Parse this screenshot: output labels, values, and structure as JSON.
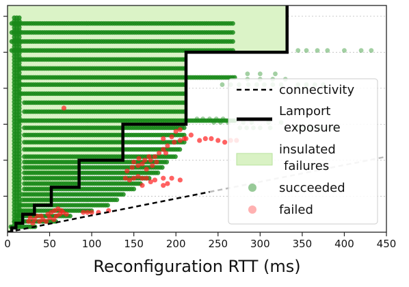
{
  "chart_data": {
    "type": "scatter",
    "xlabel": "Reconfiguration RTT (ms)",
    "ylabel": "",
    "title": "",
    "xlim": [
      0,
      450
    ],
    "ylim": [
      0,
      6.3
    ],
    "x_ticks": [
      "0",
      "50",
      "100",
      "150",
      "200",
      "250",
      "300",
      "350",
      "400",
      "450"
    ],
    "grid": "horizontal dashed",
    "legend_position": "right",
    "legend": {
      "connectivity": "connectivity",
      "lamport_line1": "Lamport",
      "lamport_line2": "exposure",
      "insulated_line1": "insulated",
      "insulated_line2": "failures",
      "succeeded": "succeeded",
      "failed": "failed"
    },
    "colors": {
      "succeeded": "#1a8a1a",
      "failed": "#ff2020",
      "insulated_fill": "#d9f2c4",
      "lamport_line": "#000000",
      "connectivity_line": "#000000",
      "connectivity_extension": "#bbbbbb"
    },
    "connectivity": [
      [
        0,
        0
      ],
      [
        450,
        2.1
      ]
    ],
    "lamport_exposure": [
      [
        0,
        0
      ],
      [
        5,
        0
      ],
      [
        5,
        0.12
      ],
      [
        10,
        0.12
      ],
      [
        10,
        0.25
      ],
      [
        18,
        0.25
      ],
      [
        18,
        0.5
      ],
      [
        32,
        0.5
      ],
      [
        32,
        0.75
      ],
      [
        52,
        0.75
      ],
      [
        52,
        1.25
      ],
      [
        85,
        1.25
      ],
      [
        85,
        2.0
      ],
      [
        137,
        2.0
      ],
      [
        137,
        3.0
      ],
      [
        212,
        3.0
      ],
      [
        212,
        5.0
      ],
      [
        332,
        5.0
      ],
      [
        332,
        6.3
      ]
    ],
    "insulated_failures": [
      [
        0,
        0
      ],
      [
        5,
        0
      ],
      [
        5,
        0.12
      ],
      [
        10,
        0.12
      ],
      [
        10,
        0.25
      ],
      [
        18,
        0.25
      ],
      [
        18,
        0.5
      ],
      [
        32,
        0.5
      ],
      [
        32,
        0.75
      ],
      [
        52,
        0.75
      ],
      [
        52,
        1.25
      ],
      [
        85,
        1.25
      ],
      [
        85,
        2.0
      ],
      [
        137,
        2.0
      ],
      [
        137,
        3.0
      ],
      [
        212,
        3.0
      ],
      [
        212,
        5.0
      ],
      [
        332,
        5.0
      ],
      [
        332,
        6.3
      ],
      [
        0,
        6.3
      ]
    ],
    "succeeded_bands": [
      {
        "y": 0.15,
        "x": [
          4,
          35
        ]
      },
      {
        "y": 0.3,
        "x": [
          8,
          60
        ]
      },
      {
        "y": 0.45,
        "x": [
          12,
          75
        ]
      },
      {
        "y": 0.6,
        "x": [
          14,
          100
        ]
      },
      {
        "y": 0.75,
        "x": [
          15,
          120
        ]
      },
      {
        "y": 0.9,
        "x": [
          18,
          130
        ]
      },
      {
        "y": 1.05,
        "x": [
          18,
          140
        ]
      },
      {
        "y": 1.2,
        "x": [
          20,
          150
        ]
      },
      {
        "y": 1.35,
        "x": [
          20,
          160
        ]
      },
      {
        "y": 1.5,
        "x": [
          20,
          170
        ]
      },
      {
        "y": 1.65,
        "x": [
          20,
          180
        ]
      },
      {
        "y": 1.8,
        "x": [
          20,
          185
        ]
      },
      {
        "y": 1.95,
        "x": [
          20,
          190
        ]
      },
      {
        "y": 2.1,
        "x": [
          20,
          200
        ]
      },
      {
        "y": 2.3,
        "x": [
          20,
          205
        ]
      },
      {
        "y": 2.5,
        "x": [
          20,
          210
        ]
      },
      {
        "y": 2.7,
        "x": [
          20,
          210
        ]
      },
      {
        "y": 2.9,
        "x": [
          20,
          210
        ]
      },
      {
        "y": 3.1,
        "x": [
          15,
          270
        ]
      },
      {
        "y": 3.35,
        "x": [
          20,
          210
        ]
      },
      {
        "y": 3.6,
        "x": [
          20,
          210
        ]
      },
      {
        "y": 3.85,
        "x": [
          15,
          210
        ]
      },
      {
        "y": 4.1,
        "x": [
          15,
          210
        ]
      },
      {
        "y": 4.3,
        "x": [
          15,
          270
        ]
      },
      {
        "y": 4.55,
        "x": [
          15,
          210
        ]
      },
      {
        "y": 4.8,
        "x": [
          15,
          210
        ]
      },
      {
        "y": 5.05,
        "x": [
          5,
          270
        ]
      },
      {
        "y": 5.3,
        "x": [
          5,
          270
        ]
      },
      {
        "y": 5.55,
        "x": [
          5,
          270
        ]
      },
      {
        "y": 5.8,
        "x": [
          5,
          270
        ]
      }
    ],
    "succeeded_sparse": [
      [
        225,
        3.15
      ],
      [
        232,
        3.15
      ],
      [
        240,
        3.15
      ],
      [
        248,
        3.15
      ],
      [
        256,
        3.15
      ],
      [
        245,
        3.05
      ],
      [
        253,
        3.05
      ],
      [
        262,
        3.05
      ],
      [
        276,
        2.9
      ],
      [
        284,
        2.9
      ],
      [
        292,
        2.9
      ],
      [
        300,
        2.9
      ],
      [
        312,
        2.9
      ],
      [
        330,
        2.9
      ],
      [
        345,
        2.9
      ],
      [
        352,
        2.9
      ],
      [
        360,
        2.9
      ],
      [
        370,
        2.9
      ],
      [
        380,
        2.9
      ],
      [
        390,
        2.9
      ],
      [
        280,
        3.05
      ],
      [
        290,
        3.05
      ],
      [
        310,
        3.05
      ],
      [
        325,
        3.05
      ],
      [
        255,
        4.1
      ],
      [
        265,
        4.1
      ],
      [
        275,
        4.1
      ],
      [
        286,
        4.1
      ],
      [
        296,
        4.1
      ],
      [
        305,
        4.1
      ],
      [
        315,
        4.1
      ],
      [
        325,
        4.1
      ],
      [
        345,
        4.1
      ],
      [
        355,
        4.1
      ],
      [
        365,
        4.1
      ],
      [
        375,
        4.1
      ],
      [
        285,
        4.25
      ],
      [
        300,
        4.25
      ],
      [
        315,
        4.25
      ],
      [
        330,
        4.25
      ],
      [
        285,
        4.4
      ],
      [
        300,
        4.4
      ],
      [
        318,
        4.4
      ],
      [
        345,
        5.05
      ],
      [
        355,
        5.05
      ],
      [
        368,
        5.05
      ],
      [
        380,
        5.05
      ],
      [
        400,
        5.05
      ],
      [
        420,
        5.05
      ],
      [
        432,
        5.05
      ]
    ],
    "failed_points": [
      [
        25,
        0.3
      ],
      [
        32,
        0.35
      ],
      [
        38,
        0.3
      ],
      [
        42,
        0.35
      ],
      [
        46,
        0.3
      ],
      [
        50,
        0.4
      ],
      [
        55,
        0.35
      ],
      [
        58,
        0.45
      ],
      [
        62,
        0.5
      ],
      [
        66,
        0.55
      ],
      [
        70,
        0.5
      ],
      [
        40,
        0.45
      ],
      [
        48,
        0.5
      ],
      [
        35,
        0.45
      ],
      [
        30,
        0.25
      ],
      [
        27,
        0.4
      ],
      [
        52,
        0.55
      ],
      [
        56,
        0.6
      ],
      [
        60,
        0.65
      ],
      [
        64,
        0.6
      ],
      [
        90,
        0.55
      ],
      [
        95,
        0.55
      ],
      [
        100,
        0.55
      ],
      [
        108,
        0.55
      ],
      [
        120,
        0.6
      ],
      [
        140,
        1.5
      ],
      [
        145,
        1.45
      ],
      [
        150,
        1.5
      ],
      [
        155,
        1.55
      ],
      [
        160,
        1.5
      ],
      [
        165,
        1.5
      ],
      [
        170,
        1.4
      ],
      [
        175,
        1.45
      ],
      [
        185,
        1.5
      ],
      [
        195,
        1.5
      ],
      [
        205,
        1.45
      ],
      [
        142,
        1.7
      ],
      [
        148,
        1.8
      ],
      [
        155,
        1.85
      ],
      [
        160,
        1.9
      ],
      [
        165,
        1.75
      ],
      [
        172,
        1.85
      ],
      [
        150,
        1.95
      ],
      [
        156,
        2.05
      ],
      [
        163,
        2.0
      ],
      [
        168,
        2.1
      ],
      [
        175,
        2.1
      ],
      [
        180,
        2.2
      ],
      [
        185,
        2.3
      ],
      [
        190,
        2.4
      ],
      [
        198,
        2.5
      ],
      [
        205,
        2.55
      ],
      [
        210,
        2.6
      ],
      [
        185,
        2.6
      ],
      [
        195,
        2.65
      ],
      [
        200,
        2.8
      ],
      [
        205,
        2.85
      ],
      [
        212,
        2.6
      ],
      [
        218,
        2.7
      ],
      [
        170,
        2.0
      ],
      [
        177,
        1.95
      ],
      [
        188,
        2.2
      ],
      [
        228,
        2.55
      ],
      [
        235,
        2.6
      ],
      [
        242,
        2.6
      ],
      [
        250,
        2.55
      ],
      [
        258,
        2.5
      ],
      [
        265,
        2.55
      ],
      [
        272,
        2.55
      ],
      [
        185,
        1.3
      ],
      [
        190,
        1.35
      ],
      [
        160,
        1.3
      ],
      [
        67,
        3.45
      ]
    ]
  }
}
